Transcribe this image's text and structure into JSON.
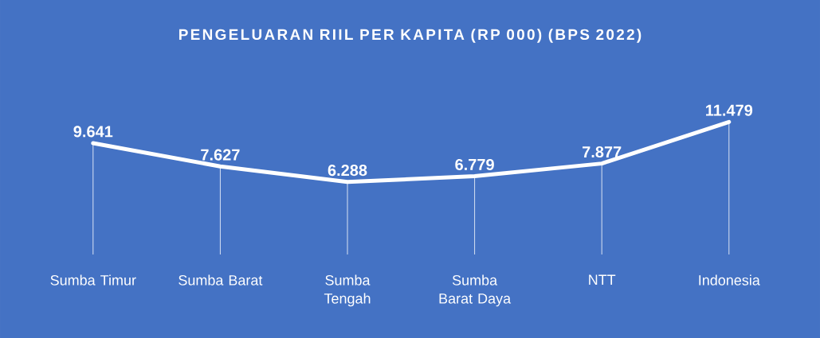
{
  "chart_data": {
    "type": "line",
    "title": "PENGELUARAN RIIL PER KAPITA (RP 000) (BPS 2022)",
    "grid": "x",
    "categories": [
      "Sumba Timur",
      "Sumba Barat",
      "Sumba Tengah",
      "Sumba Barat Daya",
      "NTT",
      "Indonesia"
    ],
    "series": [
      {
        "color": "#ffffff",
        "values": [
          9641,
          7627,
          6288,
          6779,
          7877,
          11479
        ],
        "value_labels": [
          "9.641",
          "7.627",
          "6.288",
          "6.779",
          "7.877",
          "11.479"
        ]
      }
    ]
  }
}
